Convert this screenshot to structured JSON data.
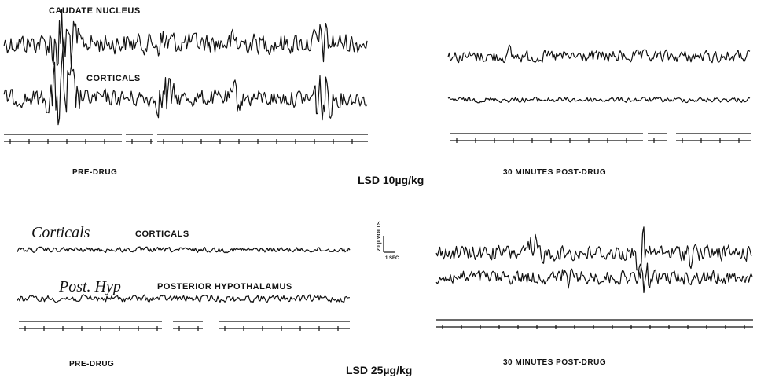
{
  "top": {
    "dose": "LSD 10µg/kg",
    "pre": {
      "caption": "PRE-DRUG",
      "trace_labels": [
        "CAUDATE NUCLEUS",
        "CORTICALS"
      ]
    },
    "post": {
      "caption": "30 MINUTES POST-DRUG"
    }
  },
  "bottom": {
    "dose": "LSD 25µg/kg",
    "pre": {
      "caption": "PRE-DRUG",
      "handwritten": [
        "Corticals",
        "Post. Hyp"
      ],
      "trace_labels": [
        "CORTICALS",
        "POSTERIOR HYPOTHALAMUS"
      ]
    },
    "post": {
      "caption": "30 MINUTES POST-DRUG"
    }
  },
  "scale_bar": {
    "voltage": "20 µ VOLTS",
    "time": "1 SEC."
  }
}
